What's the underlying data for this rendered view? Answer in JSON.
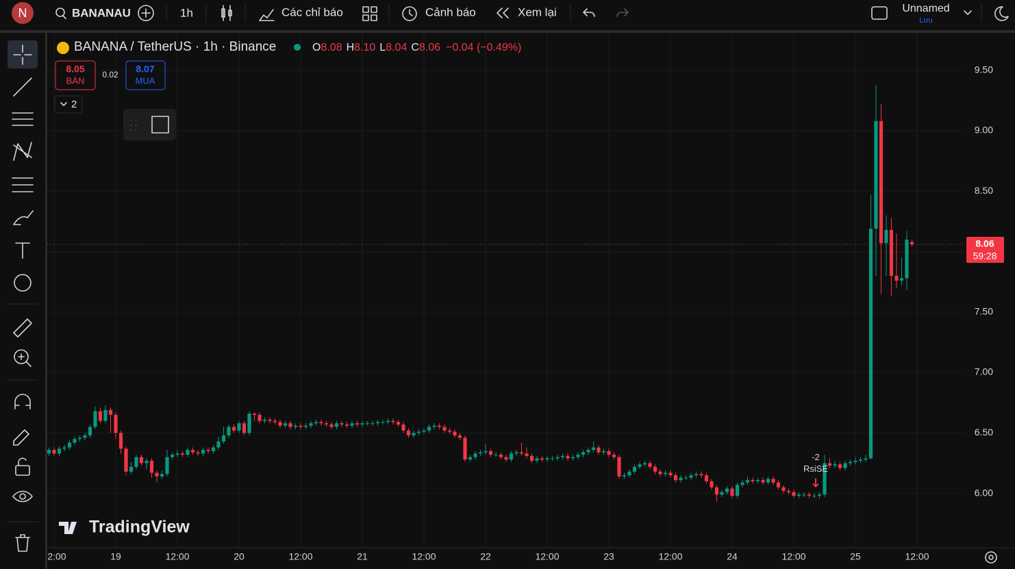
{
  "toolbar": {
    "avatar": "N",
    "symbol": "BANANAU",
    "interval": "1h",
    "indicators": "Các chỉ báo",
    "alerts": "Cảnh báo",
    "replay": "Xem lại",
    "layout_name": "Unnamed",
    "save": "Lưu"
  },
  "legend": {
    "title": "BANANA / TetherUS · 1h · Binance",
    "o_label": "O",
    "open": "8.08",
    "h_label": "H",
    "high": "8.10",
    "l_label": "L",
    "low": "8.04",
    "c_label": "C",
    "close": "8.06",
    "change": "−0.04 (−0.49%)"
  },
  "trade": {
    "sell_price": "8.05",
    "sell_label": "BÁN",
    "spread": "0.02",
    "buy_price": "8.07",
    "buy_label": "MUA",
    "indicators_count": "2"
  },
  "price_tag": {
    "price": "8.06",
    "countdown": "59:28"
  },
  "watermark": "TradingView",
  "chart_data": {
    "type": "candlestick",
    "categories": [
      null,
      "2:00",
      null,
      null,
      null,
      null,
      null,
      null,
      null,
      null,
      null,
      null,
      null,
      "19",
      null,
      null,
      null,
      null,
      null,
      null,
      null,
      null,
      null,
      null,
      null,
      "12:00",
      null,
      null,
      null,
      null,
      null,
      null,
      null,
      null,
      null,
      null,
      null,
      "20",
      null,
      null,
      null,
      null,
      null,
      null,
      null,
      null,
      null,
      null,
      null,
      "12:00",
      null,
      null,
      null,
      null,
      null,
      null,
      null,
      null,
      null,
      null,
      null,
      "21",
      null,
      null,
      null,
      null,
      null,
      null,
      null,
      null,
      null,
      null,
      null,
      "12:00",
      null,
      null,
      null,
      null,
      null,
      null,
      null,
      null,
      null,
      null,
      null,
      "22",
      null,
      null,
      null,
      null,
      null,
      null,
      null,
      null,
      null,
      null,
      null,
      "12:00",
      null,
      null,
      null,
      null,
      null,
      null,
      null,
      null,
      null,
      null,
      null,
      "23",
      null,
      null,
      null,
      null,
      null,
      null,
      null,
      null,
      null,
      null,
      null,
      "12:00",
      null,
      null,
      null,
      null,
      null,
      null,
      null,
      null,
      null,
      null,
      null,
      "24",
      null,
      null,
      null,
      null,
      null,
      null,
      null,
      null,
      null,
      null,
      null,
      "12:00",
      null,
      null,
      null,
      null,
      null,
      null,
      null,
      null,
      null,
      null,
      null,
      "25",
      null,
      null,
      null,
      null,
      null,
      null,
      null,
      null,
      null,
      null,
      null,
      "12:00"
    ],
    "open": [
      6.33,
      6.36,
      6.33,
      6.37,
      6.38,
      6.42,
      6.45,
      6.46,
      6.48,
      6.55,
      6.68,
      6.6,
      6.69,
      6.65,
      6.5,
      6.37,
      6.18,
      6.22,
      6.3,
      6.25,
      6.27,
      6.17,
      6.14,
      6.16,
      6.3,
      6.32,
      6.33,
      6.32,
      6.36,
      6.34,
      6.33,
      6.36,
      6.35,
      6.38,
      6.43,
      6.48,
      6.55,
      6.52,
      6.58,
      6.5,
      6.66,
      6.65,
      6.6,
      6.61,
      6.6,
      6.59,
      6.56,
      6.58,
      6.55,
      6.56,
      6.55,
      6.56,
      6.58,
      6.59,
      6.58,
      6.57,
      6.55,
      6.58,
      6.57,
      6.56,
      6.58,
      6.57,
      6.58,
      6.58,
      6.58,
      6.59,
      6.59,
      6.6,
      6.59,
      6.57,
      6.52,
      6.48,
      6.5,
      6.51,
      6.52,
      6.55,
      6.56,
      6.55,
      6.52,
      6.51,
      6.48,
      6.46,
      6.28,
      6.3,
      6.33,
      6.34,
      6.35,
      6.32,
      6.32,
      6.3,
      6.28,
      6.33,
      6.34,
      6.33,
      6.31,
      6.27,
      6.29,
      6.28,
      6.29,
      6.29,
      6.3,
      6.31,
      6.29,
      6.3,
      6.32,
      6.34,
      6.36,
      6.38,
      6.34,
      6.35,
      6.32,
      6.3,
      6.14,
      6.15,
      6.18,
      6.22,
      6.24,
      6.25,
      6.22,
      6.18,
      6.16,
      6.17,
      6.15,
      6.11,
      6.13,
      6.13,
      6.15,
      6.16,
      6.15,
      6.1,
      6.05,
      5.99,
      6.01,
      6.04,
      5.98,
      6.07,
      6.09,
      6.11,
      6.1,
      6.11,
      6.09,
      6.12,
      6.09,
      6.05,
      6.02,
      6.01,
      5.98,
      5.99,
      5.99,
      5.98,
      5.98,
      5.99,
      6.25,
      6.23,
      6.24,
      6.21,
      6.25,
      6.26,
      6.27,
      6.28,
      6.29,
      8.19,
      9.08,
      8.07,
      8.18,
      7.8,
      7.76,
      7.78,
      8.08,
      null
    ],
    "high": [
      6.38,
      6.38,
      6.39,
      6.4,
      6.44,
      6.47,
      6.48,
      6.5,
      6.57,
      6.72,
      6.71,
      6.73,
      6.71,
      6.67,
      6.52,
      6.39,
      6.26,
      6.32,
      6.32,
      6.29,
      6.29,
      6.19,
      6.19,
      6.36,
      6.34,
      6.36,
      6.35,
      6.38,
      6.38,
      6.36,
      6.38,
      6.38,
      6.4,
      6.47,
      6.55,
      6.57,
      6.57,
      6.6,
      6.6,
      6.68,
      6.67,
      6.67,
      6.63,
      6.63,
      6.62,
      6.61,
      6.6,
      6.6,
      6.58,
      6.58,
      6.58,
      6.6,
      6.61,
      6.61,
      6.6,
      6.59,
      6.6,
      6.6,
      6.59,
      6.6,
      6.6,
      6.6,
      6.6,
      6.6,
      6.61,
      6.61,
      6.62,
      6.62,
      6.61,
      6.59,
      6.54,
      6.52,
      6.53,
      6.54,
      6.57,
      6.58,
      6.58,
      6.57,
      6.54,
      6.53,
      6.5,
      6.48,
      6.32,
      6.35,
      6.36,
      6.41,
      6.37,
      6.34,
      6.34,
      6.32,
      6.35,
      6.36,
      6.42,
      6.38,
      6.33,
      6.31,
      6.31,
      6.31,
      6.31,
      6.32,
      6.33,
      6.33,
      6.32,
      6.34,
      6.36,
      6.38,
      6.43,
      6.4,
      6.37,
      6.37,
      6.34,
      6.32,
      6.17,
      6.2,
      6.24,
      6.26,
      6.27,
      6.27,
      6.24,
      6.2,
      6.19,
      6.19,
      6.17,
      6.15,
      6.15,
      6.17,
      6.18,
      6.18,
      6.17,
      6.12,
      6.07,
      6.03,
      6.06,
      6.06,
      6.09,
      6.11,
      6.14,
      6.13,
      6.13,
      6.13,
      6.14,
      6.14,
      6.11,
      6.07,
      6.04,
      6.03,
      6.01,
      6.01,
      6.01,
      6.0,
      6.01,
      6.32,
      6.29,
      6.27,
      6.26,
      6.27,
      6.28,
      6.3,
      6.3,
      6.32,
      8.47,
      9.38,
      9.22,
      8.3,
      8.28,
      8.15,
      7.95,
      8.17,
      8.1,
      null
    ],
    "low": [
      6.31,
      6.31,
      6.31,
      6.35,
      6.36,
      6.4,
      6.43,
      6.44,
      6.46,
      6.53,
      6.58,
      6.58,
      6.5,
      6.45,
      6.33,
      6.15,
      6.16,
      6.2,
      6.23,
      6.2,
      6.13,
      6.09,
      6.12,
      6.14,
      6.28,
      6.3,
      6.3,
      6.3,
      6.32,
      6.31,
      6.31,
      6.33,
      6.33,
      6.36,
      6.41,
      6.46,
      6.5,
      6.5,
      6.48,
      6.48,
      6.6,
      6.58,
      6.58,
      6.58,
      6.57,
      6.54,
      6.54,
      6.53,
      6.53,
      6.53,
      6.53,
      6.54,
      6.56,
      6.56,
      6.55,
      6.53,
      6.53,
      6.55,
      6.54,
      6.54,
      6.55,
      6.55,
      6.56,
      6.56,
      6.56,
      6.57,
      6.57,
      6.57,
      6.55,
      6.5,
      6.46,
      6.46,
      6.48,
      6.49,
      6.5,
      6.53,
      6.53,
      6.5,
      6.49,
      6.46,
      6.44,
      6.26,
      6.26,
      6.28,
      6.31,
      6.32,
      6.3,
      6.3,
      6.28,
      6.26,
      6.26,
      6.31,
      6.31,
      6.29,
      6.25,
      6.25,
      6.26,
      6.26,
      6.27,
      6.27,
      6.28,
      6.27,
      6.27,
      6.28,
      6.3,
      6.32,
      6.34,
      6.32,
      6.32,
      6.3,
      6.28,
      6.12,
      6.12,
      6.13,
      6.16,
      6.2,
      6.22,
      6.2,
      6.16,
      6.14,
      6.14,
      6.13,
      6.09,
      6.09,
      6.11,
      6.11,
      6.13,
      6.13,
      6.08,
      6.03,
      5.93,
      5.97,
      5.99,
      5.96,
      5.96,
      6.05,
      6.07,
      6.08,
      6.08,
      6.07,
      6.07,
      6.07,
      6.03,
      6.0,
      5.99,
      5.96,
      5.96,
      5.97,
      5.96,
      5.96,
      5.96,
      5.97,
      6.21,
      6.21,
      6.19,
      6.19,
      6.23,
      6.24,
      6.25,
      6.26,
      6.28,
      7.8,
      7.65,
      7.8,
      7.63,
      7.7,
      7.72,
      7.68,
      8.04,
      null
    ],
    "close": [
      6.36,
      6.33,
      6.37,
      6.38,
      6.42,
      6.45,
      6.46,
      6.48,
      6.55,
      6.68,
      6.6,
      6.69,
      6.65,
      6.5,
      6.37,
      6.18,
      6.22,
      6.3,
      6.25,
      6.27,
      6.17,
      6.14,
      6.16,
      6.3,
      6.32,
      6.33,
      6.32,
      6.36,
      6.34,
      6.33,
      6.36,
      6.35,
      6.38,
      6.43,
      6.48,
      6.55,
      6.52,
      6.58,
      6.5,
      6.66,
      6.65,
      6.6,
      6.61,
      6.6,
      6.59,
      6.56,
      6.58,
      6.55,
      6.56,
      6.55,
      6.56,
      6.58,
      6.59,
      6.58,
      6.57,
      6.55,
      6.58,
      6.57,
      6.56,
      6.58,
      6.57,
      6.58,
      6.58,
      6.58,
      6.59,
      6.59,
      6.6,
      6.59,
      6.57,
      6.52,
      6.48,
      6.5,
      6.51,
      6.52,
      6.55,
      6.56,
      6.55,
      6.52,
      6.51,
      6.48,
      6.46,
      6.28,
      6.3,
      6.33,
      6.34,
      6.35,
      6.32,
      6.32,
      6.3,
      6.28,
      6.33,
      6.34,
      6.33,
      6.31,
      6.27,
      6.29,
      6.28,
      6.29,
      6.29,
      6.3,
      6.31,
      6.29,
      6.3,
      6.32,
      6.34,
      6.36,
      6.38,
      6.34,
      6.35,
      6.32,
      6.3,
      6.14,
      6.15,
      6.18,
      6.22,
      6.24,
      6.25,
      6.22,
      6.18,
      6.16,
      6.17,
      6.15,
      6.11,
      6.13,
      6.13,
      6.15,
      6.16,
      6.15,
      6.1,
      6.05,
      5.99,
      6.01,
      6.04,
      5.98,
      6.07,
      6.09,
      6.11,
      6.1,
      6.11,
      6.09,
      6.12,
      6.09,
      6.05,
      6.02,
      6.01,
      5.98,
      5.99,
      5.99,
      5.98,
      5.98,
      5.99,
      6.25,
      6.23,
      6.24,
      6.21,
      6.25,
      6.26,
      6.27,
      6.28,
      6.29,
      8.19,
      9.08,
      8.07,
      8.18,
      7.8,
      7.76,
      7.78,
      8.1,
      8.06,
      null
    ],
    "up_color": "#089981",
    "down_color": "#f23645",
    "ylim": [
      5.55,
      9.81
    ],
    "yticks": [
      {
        "value": 6,
        "label": "6.00"
      },
      {
        "value": 6.5,
        "label": "6.50"
      },
      {
        "value": 7,
        "label": "7.00"
      },
      {
        "value": 7.5,
        "label": "7.50"
      },
      {
        "value": 8,
        "label": "8.00"
      },
      {
        "value": 8.5,
        "label": "8.50"
      },
      {
        "value": 9,
        "label": "9.00"
      },
      {
        "value": 9.5,
        "label": "9.50"
      }
    ],
    "grid": true,
    "annotation": {
      "signal": "-2",
      "name": "RsiSE"
    }
  }
}
